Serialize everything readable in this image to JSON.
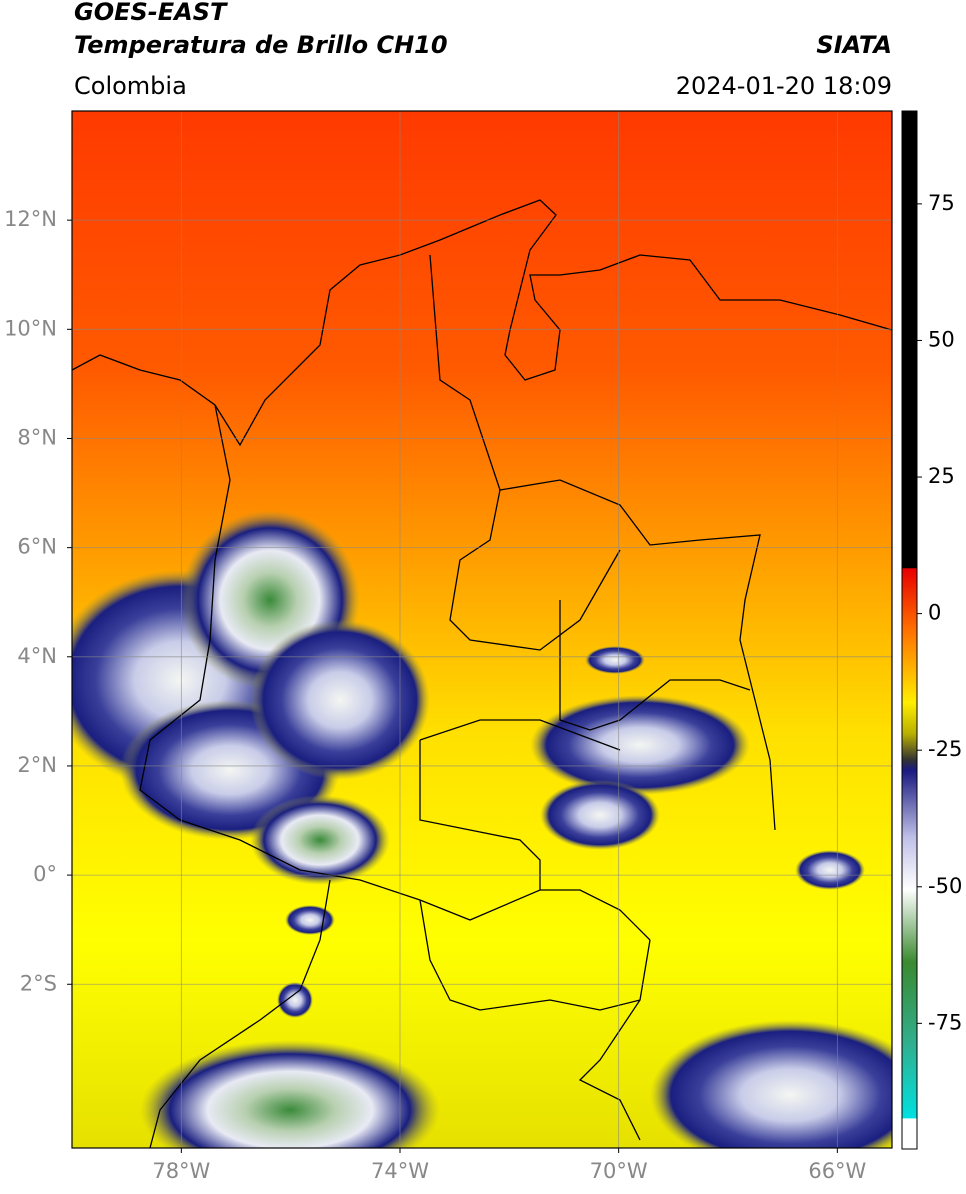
{
  "header": {
    "title_line1": "GOES-EAST",
    "title_line2": "Temperatura de Brillo CH10",
    "source": "SIATA",
    "region": "Colombia",
    "datetime": "2024-01-20 18:09"
  },
  "map": {
    "xlim": [
      -80,
      -65
    ],
    "ylim": [
      -5,
      14
    ],
    "xticks": [
      {
        "value": -78,
        "label": "78°W"
      },
      {
        "value": -74,
        "label": "74°W"
      },
      {
        "value": -70,
        "label": "70°W"
      },
      {
        "value": -66,
        "label": "66°W"
      }
    ],
    "yticks": [
      {
        "value": 12,
        "label": "12°N"
      },
      {
        "value": 10,
        "label": "10°N"
      },
      {
        "value": 8,
        "label": "8°N"
      },
      {
        "value": 6,
        "label": "6°N"
      },
      {
        "value": 4,
        "label": "4°N"
      },
      {
        "value": 2,
        "label": "2°N"
      },
      {
        "value": 0,
        "label": "0°"
      },
      {
        "value": -2,
        "label": "2°S"
      }
    ],
    "grid": true
  },
  "colorbar": {
    "lim": [
      -98,
      92
    ],
    "ticks": [
      75,
      50,
      25,
      0,
      -25,
      -50,
      -75
    ]
  }
}
